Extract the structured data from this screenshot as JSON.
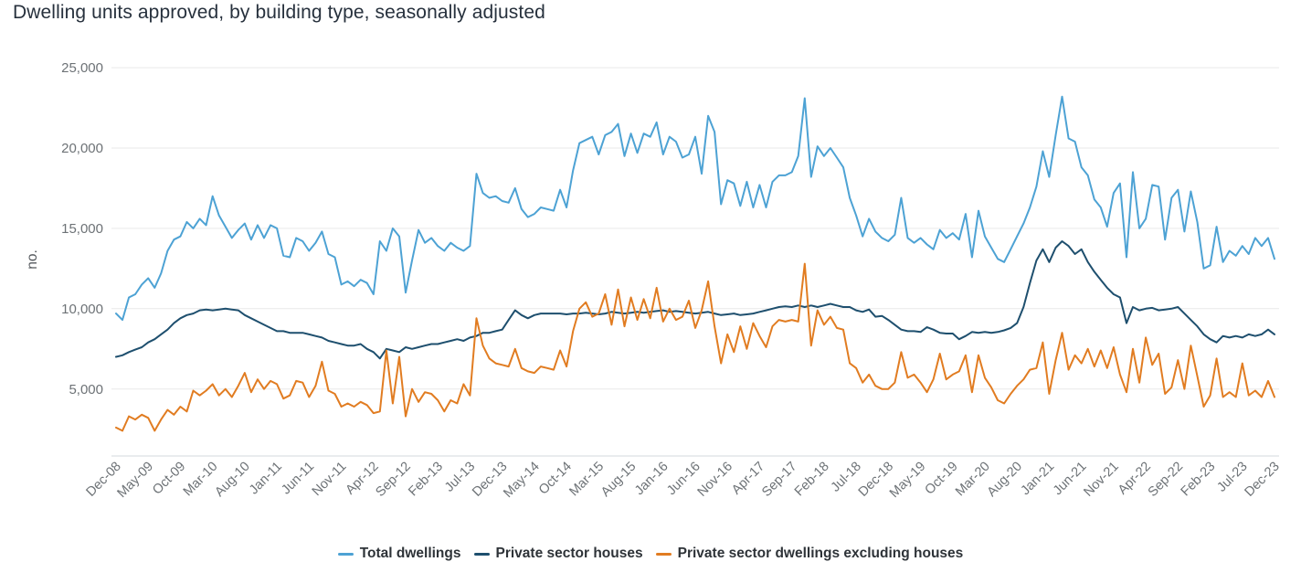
{
  "title": "Dwelling units approved, by building type, seasonally adjusted",
  "y_axis": {
    "label": "no.",
    "tick_labels": [
      "5,000",
      "10,000",
      "15,000",
      "20,000",
      "25,000"
    ],
    "tick_values": [
      5000,
      10000,
      15000,
      20000,
      25000
    ]
  },
  "x_axis": {
    "tick_labels": [
      "Dec-08",
      "May-09",
      "Oct-09",
      "Mar-10",
      "Aug-10",
      "Jan-11",
      "Jun-11",
      "Nov-11",
      "Apr-12",
      "Sep-12",
      "Feb-13",
      "Jul-13",
      "Dec-13",
      "May-14",
      "Oct-14",
      "Mar-15",
      "Aug-15",
      "Jan-16",
      "Jun-16",
      "Nov-16",
      "Apr-17",
      "Sep-17",
      "Feb-18",
      "Jul-18",
      "Dec-18",
      "May-19",
      "Oct-19",
      "Mar-20",
      "Aug-20",
      "Jan-21",
      "Jun-21",
      "Nov-21",
      "Apr-22",
      "Sep-22",
      "Feb-23",
      "Jul-23",
      "Dec-23"
    ],
    "tick_every_n_months": 5
  },
  "colors": {
    "grid": "#e9e9e9",
    "axis_line": "#d3d9de",
    "tick_text": "#6d7276",
    "title_text": "#27313d"
  },
  "chart_data": {
    "type": "line",
    "title": "Dwelling units approved, by building type, seasonally adjusted",
    "xlabel": "",
    "ylabel": "no.",
    "ylim": [
      0,
      25000
    ],
    "x_start": "Dec-08",
    "x_end": "Dec-23",
    "x_frequency": "monthly",
    "n_points": 181,
    "grid": "horizontal-only",
    "legend_position": "bottom-center",
    "x_tick_labels": [
      "Dec-08",
      "May-09",
      "Oct-09",
      "Mar-10",
      "Aug-10",
      "Jan-11",
      "Jun-11",
      "Nov-11",
      "Apr-12",
      "Sep-12",
      "Feb-13",
      "Jul-13",
      "Dec-13",
      "May-14",
      "Oct-14",
      "Mar-15",
      "Aug-15",
      "Jan-16",
      "Jun-16",
      "Nov-16",
      "Apr-17",
      "Sep-17",
      "Feb-18",
      "Jul-18",
      "Dec-18",
      "May-19",
      "Oct-19",
      "Mar-20",
      "Aug-20",
      "Jan-21",
      "Jun-21",
      "Nov-21",
      "Apr-22",
      "Sep-22",
      "Feb-23",
      "Jul-23",
      "Dec-23"
    ],
    "series": [
      {
        "name": "Total dwellings",
        "color": "#4da2d4",
        "values": [
          9700,
          9300,
          10700,
          10900,
          11500,
          11900,
          11300,
          12200,
          13600,
          14300,
          14500,
          15400,
          15000,
          15600,
          15200,
          17000,
          15800,
          15100,
          14400,
          14900,
          15300,
          14300,
          15200,
          14400,
          15200,
          15000,
          13300,
          13200,
          14400,
          14200,
          13600,
          14100,
          14800,
          13400,
          13200,
          11500,
          11700,
          11400,
          11800,
          11600,
          10900,
          14200,
          13600,
          15000,
          14500,
          11000,
          13000,
          14900,
          14100,
          14400,
          13900,
          13600,
          14100,
          13800,
          13600,
          13900,
          18400,
          17200,
          16900,
          17000,
          16700,
          16600,
          17500,
          16200,
          15700,
          15900,
          16300,
          16200,
          16100,
          17400,
          16300,
          18600,
          20300,
          20500,
          20700,
          19600,
          20800,
          21000,
          21500,
          19500,
          20900,
          19700,
          20900,
          20700,
          21600,
          19600,
          20700,
          20400,
          19400,
          19600,
          20700,
          18400,
          22000,
          21000,
          16500,
          18000,
          17800,
          16400,
          17900,
          16300,
          17700,
          16300,
          17900,
          18300,
          18300,
          18500,
          19500,
          23100,
          18200,
          20100,
          19500,
          20000,
          19400,
          18800,
          16900,
          15800,
          14500,
          15600,
          14800,
          14400,
          14200,
          14600,
          16900,
          14400,
          14100,
          14400,
          14000,
          13700,
          14900,
          14400,
          14700,
          14300,
          15900,
          13200,
          16100,
          14500,
          13800,
          13100,
          12900,
          13700,
          14500,
          15300,
          16300,
          17600,
          19800,
          18200,
          20800,
          23200,
          20600,
          20400,
          18800,
          18300,
          16800,
          16300,
          15100,
          17200,
          17800,
          13200,
          18500,
          15000,
          15600,
          17700,
          17600,
          14300,
          16900,
          17400,
          14800,
          17300,
          15400,
          12500,
          12700,
          15100,
          12900,
          13600,
          13300,
          13900,
          13400,
          14400,
          13900,
          14400,
          13100
        ]
      },
      {
        "name": "Private sector houses",
        "color": "#1e4f6e",
        "values": [
          7000,
          7100,
          7300,
          7450,
          7600,
          7900,
          8100,
          8400,
          8700,
          9100,
          9400,
          9600,
          9700,
          9900,
          9950,
          9900,
          9950,
          10000,
          9950,
          9900,
          9600,
          9400,
          9200,
          9000,
          8800,
          8600,
          8600,
          8500,
          8500,
          8500,
          8400,
          8300,
          8200,
          8000,
          7900,
          7800,
          7700,
          7700,
          7800,
          7500,
          7300,
          6900,
          7500,
          7400,
          7300,
          7600,
          7500,
          7600,
          7700,
          7800,
          7800,
          7900,
          8000,
          8100,
          8000,
          8200,
          8300,
          8500,
          8500,
          8600,
          8700,
          9300,
          9900,
          9600,
          9400,
          9600,
          9700,
          9700,
          9700,
          9700,
          9650,
          9700,
          9700,
          9750,
          9700,
          9650,
          9700,
          9800,
          9750,
          9700,
          9750,
          9800,
          9750,
          9800,
          9850,
          9900,
          9800,
          9850,
          9800,
          9750,
          9700,
          9750,
          9800,
          9700,
          9600,
          9650,
          9700,
          9600,
          9650,
          9700,
          9800,
          9900,
          10000,
          10100,
          10150,
          10100,
          10200,
          10100,
          10200,
          10100,
          10200,
          10300,
          10200,
          10100,
          10100,
          9900,
          9800,
          9950,
          9500,
          9550,
          9300,
          9000,
          8700,
          8600,
          8600,
          8550,
          8850,
          8700,
          8500,
          8450,
          8450,
          8100,
          8300,
          8550,
          8500,
          8550,
          8500,
          8550,
          8650,
          8800,
          9100,
          10100,
          11600,
          13000,
          13700,
          12900,
          13800,
          14200,
          13900,
          13400,
          13700,
          12900,
          12300,
          11800,
          11300,
          10900,
          10700,
          9100,
          10100,
          9900,
          10000,
          10050,
          9900,
          9950,
          10000,
          10100,
          9700,
          9300,
          8900,
          8400,
          8100,
          7900,
          8300,
          8200,
          8300,
          8200,
          8400,
          8300,
          8400,
          8700,
          8400
        ]
      },
      {
        "name": "Private sector dwellings excluding houses",
        "color": "#e17c21",
        "values": [
          2600,
          2400,
          3300,
          3100,
          3400,
          3200,
          2400,
          3100,
          3700,
          3400,
          3900,
          3600,
          4900,
          4600,
          4900,
          5300,
          4600,
          5000,
          4500,
          5200,
          6000,
          4800,
          5600,
          5000,
          5500,
          5300,
          4400,
          4600,
          5500,
          5400,
          4500,
          5200,
          6700,
          4900,
          4700,
          3900,
          4100,
          3900,
          4200,
          4000,
          3500,
          3600,
          7400,
          4100,
          7000,
          3300,
          5000,
          4200,
          4800,
          4700,
          4300,
          3600,
          4300,
          4100,
          5300,
          4600,
          9400,
          7700,
          6900,
          6600,
          6500,
          6400,
          7500,
          6300,
          6100,
          6000,
          6400,
          6300,
          6200,
          7400,
          6400,
          8600,
          10000,
          10400,
          9500,
          9700,
          10900,
          9000,
          11200,
          8900,
          10700,
          9300,
          10600,
          9400,
          11300,
          9200,
          10000,
          9300,
          9500,
          10500,
          8800,
          9900,
          11700,
          8900,
          6600,
          8400,
          7300,
          8900,
          7500,
          9100,
          8300,
          7600,
          8900,
          9300,
          9200,
          9300,
          9200,
          12800,
          7700,
          9900,
          9000,
          9500,
          8800,
          8700,
          6600,
          6300,
          5400,
          5900,
          5200,
          5000,
          5000,
          5400,
          7300,
          5700,
          5900,
          5400,
          4800,
          5600,
          7200,
          5600,
          5900,
          6100,
          7100,
          4800,
          7100,
          5700,
          5100,
          4300,
          4100,
          4700,
          5200,
          5600,
          6200,
          6300,
          7900,
          4700,
          6800,
          8500,
          6200,
          7100,
          6600,
          7500,
          6400,
          7400,
          6300,
          7600,
          5900,
          4800,
          7500,
          5400,
          8200,
          6500,
          7200,
          4700,
          5100,
          6800,
          5000,
          7700,
          5800,
          3900,
          4600,
          6900,
          4500,
          4800,
          4500,
          6600,
          4600,
          4900,
          4500,
          5500,
          4500
        ]
      }
    ]
  }
}
